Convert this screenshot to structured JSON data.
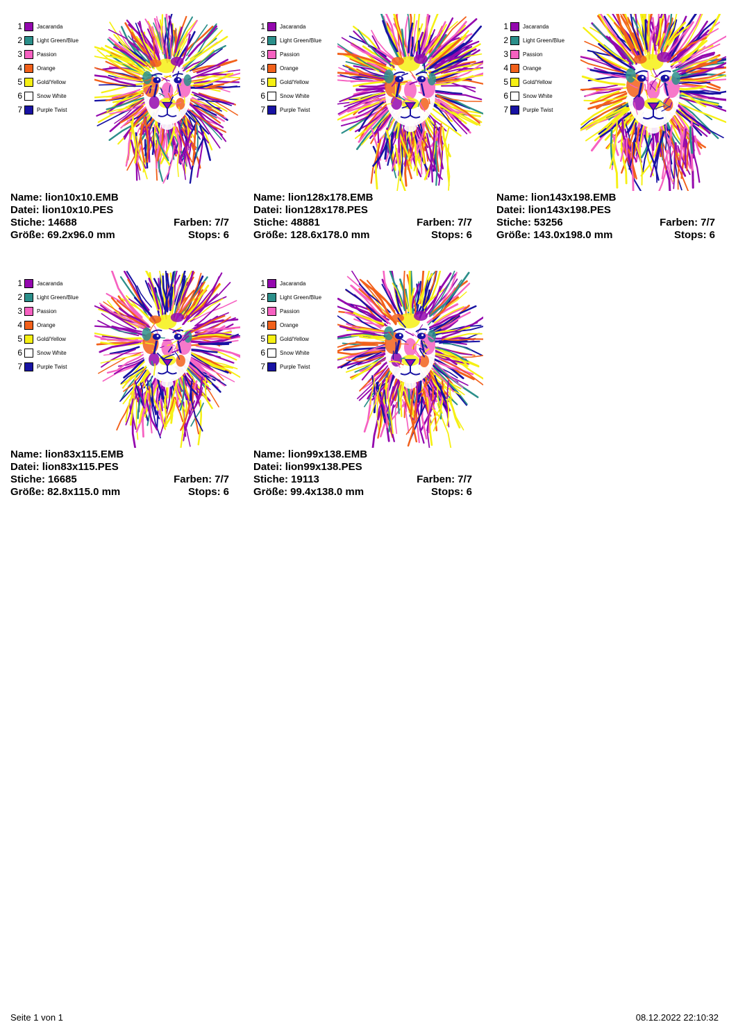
{
  "page": {
    "footer_left": "Seite 1 von 1",
    "footer_right": "08.12.2022 22:10:32"
  },
  "labels": {
    "name": "Name:",
    "file": "Datei:",
    "stitches": "Stiche:",
    "colors": "Farben:",
    "size": "Größe:",
    "stops": "Stops:"
  },
  "legend": {
    "colors": [
      {
        "index": 1,
        "name": "Jacaranda",
        "hex": "#9408AE"
      },
      {
        "index": 2,
        "name": "Light Green/Blue",
        "hex": "#2B8F8A"
      },
      {
        "index": 3,
        "name": "Passion",
        "hex": "#F661C1"
      },
      {
        "index": 4,
        "name": "Orange",
        "hex": "#F2611B"
      },
      {
        "index": 5,
        "name": "Gold/Yellow",
        "hex": "#F6F014"
      },
      {
        "index": 6,
        "name": "Snow White",
        "hex": "#FFFFFF"
      },
      {
        "index": 7,
        "name": "Purple Twist",
        "hex": "#1813A3"
      }
    ]
  },
  "designs": [
    {
      "name": "lion10x10.EMB",
      "file": "lion10x10.PES",
      "stitches": "14688",
      "colors": "7/7",
      "size": "69.2x96.0 mm",
      "stops": "6"
    },
    {
      "name": "lion128x178.EMB",
      "file": "lion128x178.PES",
      "stitches": "48881",
      "colors": "7/7",
      "size": "128.6x178.0 mm",
      "stops": "6"
    },
    {
      "name": "lion143x198.EMB",
      "file": "lion143x198.PES",
      "stitches": "53256",
      "colors": "7/7",
      "size": "143.0x198.0 mm",
      "stops": "6"
    },
    {
      "name": "lion83x115.EMB",
      "file": "lion83x115.PES",
      "stitches": "16685",
      "colors": "7/7",
      "size": "82.8x115.0 mm",
      "stops": "6"
    },
    {
      "name": "lion99x138.EMB",
      "file": "lion99x138.PES",
      "stitches": "19113",
      "colors": "7/7",
      "size": "99.4x138.0 mm",
      "stops": "6"
    }
  ]
}
